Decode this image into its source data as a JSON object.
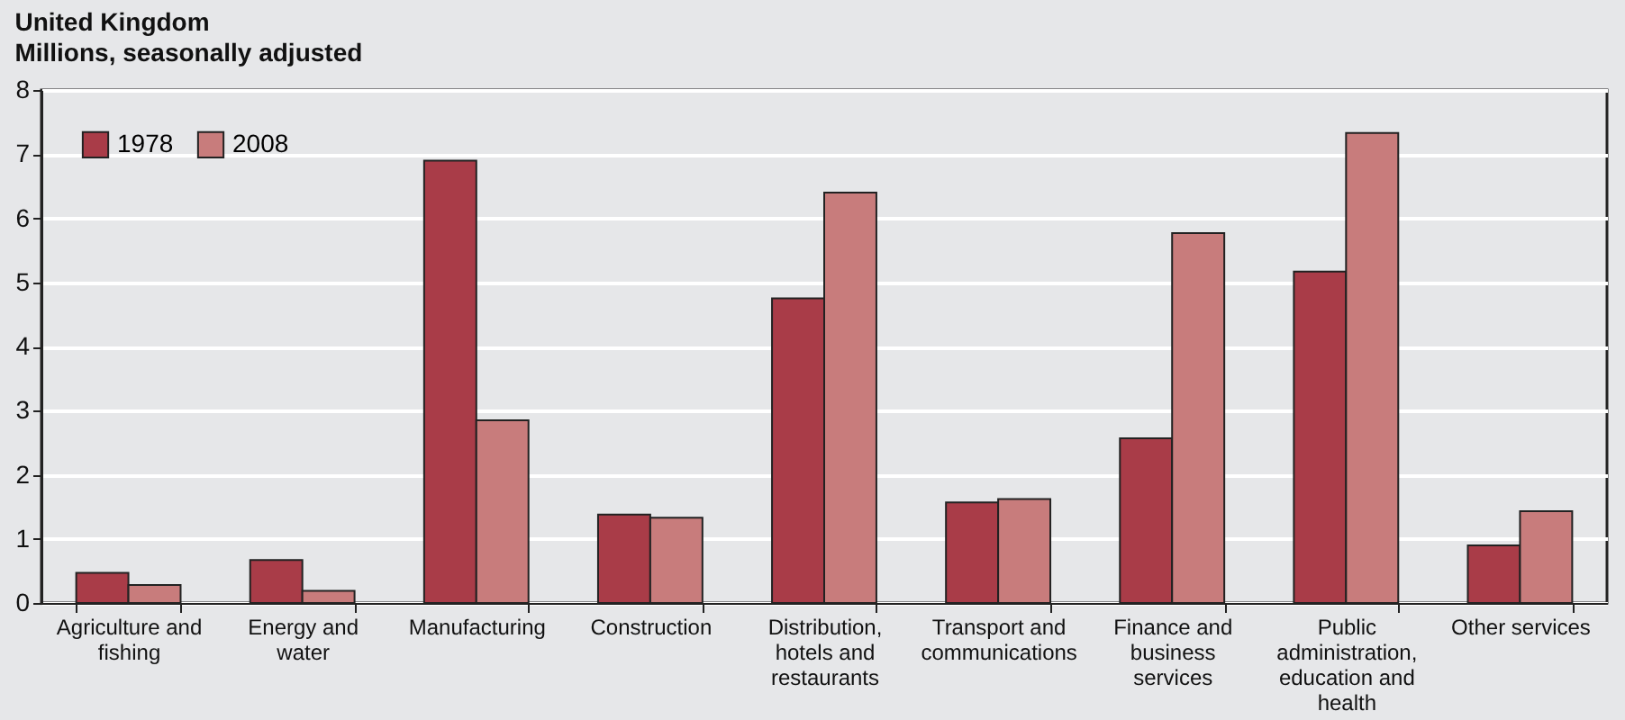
{
  "chart_data": {
    "type": "bar",
    "title": "United Kingdom",
    "subtitle": "Millions, seasonally adjusted",
    "categories": [
      "Agriculture and fishing",
      "Energy and water",
      "Manufacturing",
      "Construction",
      "Distribution, hotels and restaurants",
      "Transport and communications",
      "Finance and business services",
      "Public administration, education and health",
      "Other services"
    ],
    "series": [
      {
        "name": "1978",
        "color": "#a93c48",
        "values": [
          0.47,
          0.67,
          6.9,
          1.38,
          4.75,
          1.57,
          2.57,
          5.17,
          0.9
        ]
      },
      {
        "name": "2008",
        "color": "#c87c7c",
        "values": [
          0.28,
          0.19,
          2.85,
          1.33,
          6.4,
          1.62,
          5.77,
          7.33,
          1.43
        ]
      }
    ],
    "ylim": [
      0,
      8
    ],
    "yticks": [
      0,
      1,
      2,
      3,
      4,
      5,
      6,
      7,
      8
    ],
    "grid": "y",
    "legend": "top left"
  }
}
